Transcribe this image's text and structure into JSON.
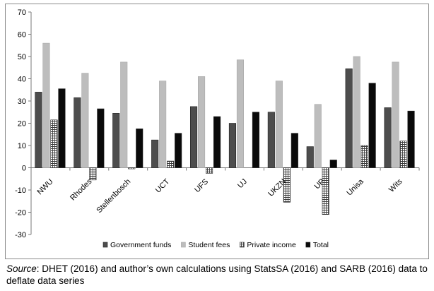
{
  "chart_data": {
    "type": "bar",
    "categories": [
      "NWU",
      "Rhodes",
      "Stellenbosch",
      "UCT",
      "UFS",
      "UJ",
      "UKZN",
      "UP",
      "Unisa",
      "Wits"
    ],
    "series": [
      {
        "name": "Government funds",
        "color": "#4d4d4d",
        "pattern": "solid-dark",
        "values": [
          34,
          31.5,
          24.5,
          12.5,
          27.5,
          20,
          25,
          9.5,
          44.5,
          27
        ]
      },
      {
        "name": "Student fees",
        "color": "#bdbdbd",
        "pattern": "solid-light",
        "values": [
          56,
          42.5,
          47.5,
          39,
          41,
          48.5,
          39,
          28.5,
          50,
          47.5
        ]
      },
      {
        "name": "Private income",
        "color": "#ffffff",
        "pattern": "grid-hatch",
        "values": [
          21.5,
          -5.5,
          -0.5,
          3,
          -2.5,
          0,
          -15.5,
          -21,
          10,
          12
        ]
      },
      {
        "name": "Total",
        "color": "#0a0a0a",
        "pattern": "solid-black",
        "values": [
          35.5,
          26.5,
          17.5,
          15.5,
          23,
          25,
          15.5,
          3.5,
          38,
          25.5
        ]
      }
    ],
    "ylim": [
      -30,
      70
    ],
    "yticks": [
      70,
      60,
      50,
      40,
      30,
      20,
      10,
      0,
      -10,
      -20,
      -30
    ],
    "xlabel": "",
    "ylabel": "",
    "grid": false,
    "legend_position": "bottom"
  },
  "caption": {
    "source_label": "Source",
    "text": ": DHET (2016) and author’s own calculations using StatsSA (2016) and SARB (2016) data to deflate data series"
  }
}
